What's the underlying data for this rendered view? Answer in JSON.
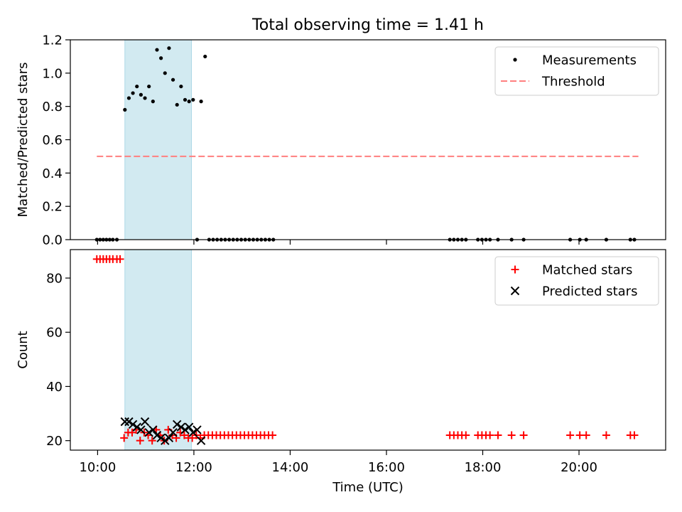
{
  "chart_data": [
    {
      "type": "scatter",
      "title": "Total observing time = 1.41 h",
      "ylabel": "Matched/Predicted stars",
      "xlabel": "",
      "xlim": [
        "09:26",
        "21:48"
      ],
      "ylim": [
        0,
        1.2
      ],
      "yticks": [
        0.0,
        0.2,
        0.4,
        0.6,
        0.8,
        1.0,
        1.2
      ],
      "ytick_labels": [
        "0.0",
        "0.2",
        "0.4",
        "0.6",
        "0.8",
        "1.0",
        "1.2"
      ],
      "legend_position": "top-right",
      "shaded_interval": {
        "start": "10:34",
        "end": "11:57",
        "color": "#add8e6"
      },
      "series": [
        {
          "name": "Measurements",
          "marker": "dot",
          "color": "#000000",
          "points": [
            [
              "09:59",
              0
            ],
            [
              "10:03",
              0
            ],
            [
              "10:07",
              0
            ],
            [
              "10:11",
              0
            ],
            [
              "10:15",
              0
            ],
            [
              "10:19",
              0
            ],
            [
              "10:24",
              0
            ],
            [
              "10:34",
              0.78
            ],
            [
              "10:39",
              0.85
            ],
            [
              "10:44",
              0.88
            ],
            [
              "10:49",
              0.92
            ],
            [
              "10:54",
              0.87
            ],
            [
              "10:59",
              0.85
            ],
            [
              "11:04",
              0.92
            ],
            [
              "11:09",
              0.83
            ],
            [
              "11:14",
              1.14
            ],
            [
              "11:19",
              1.09
            ],
            [
              "11:24",
              1.0
            ],
            [
              "11:29",
              1.15
            ],
            [
              "11:34",
              0.96
            ],
            [
              "11:39",
              0.81
            ],
            [
              "11:44",
              0.92
            ],
            [
              "11:49",
              0.84
            ],
            [
              "11:54",
              0.83
            ],
            [
              "11:59",
              0.84
            ],
            [
              "12:09",
              0.83
            ],
            [
              "12:14",
              1.1
            ],
            [
              "12:04",
              0
            ],
            [
              "12:19",
              0
            ],
            [
              "12:24",
              0
            ],
            [
              "12:29",
              0
            ],
            [
              "12:34",
              0
            ],
            [
              "12:39",
              0
            ],
            [
              "12:44",
              0
            ],
            [
              "12:49",
              0
            ],
            [
              "12:54",
              0
            ],
            [
              "12:59",
              0
            ],
            [
              "13:04",
              0
            ],
            [
              "13:09",
              0
            ],
            [
              "13:14",
              0
            ],
            [
              "13:19",
              0
            ],
            [
              "13:24",
              0
            ],
            [
              "13:29",
              0
            ],
            [
              "13:34",
              0
            ],
            [
              "13:39",
              0
            ],
            [
              "17:19",
              0
            ],
            [
              "17:24",
              0
            ],
            [
              "17:29",
              0
            ],
            [
              "17:34",
              0
            ],
            [
              "17:39",
              0
            ],
            [
              "17:54",
              0
            ],
            [
              "17:59",
              0
            ],
            [
              "18:04",
              0
            ],
            [
              "18:09",
              0
            ],
            [
              "18:19",
              0
            ],
            [
              "18:36",
              0
            ],
            [
              "18:51",
              0
            ],
            [
              "19:49",
              0
            ],
            [
              "20:01",
              0
            ],
            [
              "20:09",
              0
            ],
            [
              "20:34",
              0
            ],
            [
              "21:04",
              0
            ],
            [
              "21:09",
              0
            ]
          ]
        },
        {
          "name": "Threshold",
          "marker": "dashed-line",
          "color": "#ff7f7f",
          "points": [
            [
              "09:59",
              0.5
            ],
            [
              "21:14",
              0.5
            ]
          ]
        }
      ]
    },
    {
      "type": "scatter",
      "title": "",
      "ylabel": "Count",
      "xlabel": "Time (UTC)",
      "xlim": [
        "09:26",
        "21:48"
      ],
      "ylim": [
        16.5,
        90.5
      ],
      "yticks": [
        20,
        40,
        60,
        80
      ],
      "ytick_labels": [
        "20",
        "40",
        "60",
        "80"
      ],
      "xticks": [
        "10:00",
        "12:00",
        "14:00",
        "16:00",
        "18:00",
        "20:00"
      ],
      "xtick_labels": [
        "10:00",
        "12:00",
        "14:00",
        "16:00",
        "18:00",
        "20:00"
      ],
      "legend_position": "top-right",
      "shaded_interval": {
        "start": "10:34",
        "end": "11:57",
        "color": "#add8e6"
      },
      "series": [
        {
          "name": "Matched stars",
          "marker": "plus",
          "color": "#ff0000",
          "points": [
            [
              "09:59",
              87
            ],
            [
              "10:03",
              87
            ],
            [
              "10:07",
              87
            ],
            [
              "10:11",
              87
            ],
            [
              "10:15",
              87
            ],
            [
              "10:19",
              87
            ],
            [
              "10:24",
              87
            ],
            [
              "10:28",
              87
            ],
            [
              "10:33",
              21
            ],
            [
              "10:38",
              23
            ],
            [
              "10:43",
              23
            ],
            [
              "10:48",
              24
            ],
            [
              "10:53",
              20
            ],
            [
              "10:58",
              23
            ],
            [
              "11:03",
              22
            ],
            [
              "11:08",
              20
            ],
            [
              "11:13",
              24
            ],
            [
              "11:18",
              22
            ],
            [
              "11:23",
              20
            ],
            [
              "11:28",
              24
            ],
            [
              "11:33",
              22
            ],
            [
              "11:38",
              21
            ],
            [
              "11:43",
              23
            ],
            [
              "11:48",
              22
            ],
            [
              "11:53",
              21
            ],
            [
              "11:58",
              21
            ],
            [
              "12:03",
              22
            ],
            [
              "12:08",
              21
            ],
            [
              "12:13",
              22
            ],
            [
              "12:18",
              22
            ],
            [
              "12:23",
              22
            ],
            [
              "12:28",
              22
            ],
            [
              "12:33",
              22
            ],
            [
              "12:38",
              22
            ],
            [
              "12:43",
              22
            ],
            [
              "12:48",
              22
            ],
            [
              "12:53",
              22
            ],
            [
              "12:58",
              22
            ],
            [
              "13:03",
              22
            ],
            [
              "13:08",
              22
            ],
            [
              "13:13",
              22
            ],
            [
              "13:18",
              22
            ],
            [
              "13:23",
              22
            ],
            [
              "13:28",
              22
            ],
            [
              "13:33",
              22
            ],
            [
              "13:38",
              22
            ],
            [
              "17:19",
              22
            ],
            [
              "17:24",
              22
            ],
            [
              "17:29",
              22
            ],
            [
              "17:34",
              22
            ],
            [
              "17:39",
              22
            ],
            [
              "17:54",
              22
            ],
            [
              "17:59",
              22
            ],
            [
              "18:04",
              22
            ],
            [
              "18:09",
              22
            ],
            [
              "18:19",
              22
            ],
            [
              "18:36",
              22
            ],
            [
              "18:51",
              22
            ],
            [
              "19:49",
              22
            ],
            [
              "20:01",
              22
            ],
            [
              "20:09",
              22
            ],
            [
              "20:34",
              22
            ],
            [
              "21:04",
              22
            ],
            [
              "21:09",
              22
            ]
          ]
        },
        {
          "name": "Predicted stars",
          "marker": "x",
          "color": "#000000",
          "points": [
            [
              "10:34",
              27
            ],
            [
              "10:39",
              27
            ],
            [
              "10:44",
              26
            ],
            [
              "10:49",
              25
            ],
            [
              "10:54",
              24
            ],
            [
              "10:59",
              27
            ],
            [
              "11:04",
              23
            ],
            [
              "11:09",
              24
            ],
            [
              "11:14",
              22
            ],
            [
              "11:19",
              21
            ],
            [
              "11:24",
              20
            ],
            [
              "11:29",
              21
            ],
            [
              "11:34",
              23
            ],
            [
              "11:39",
              26
            ],
            [
              "11:44",
              25
            ],
            [
              "11:49",
              24
            ],
            [
              "11:54",
              25
            ],
            [
              "11:59",
              23
            ],
            [
              "12:04",
              24
            ],
            [
              "12:09",
              20
            ]
          ]
        }
      ]
    }
  ]
}
